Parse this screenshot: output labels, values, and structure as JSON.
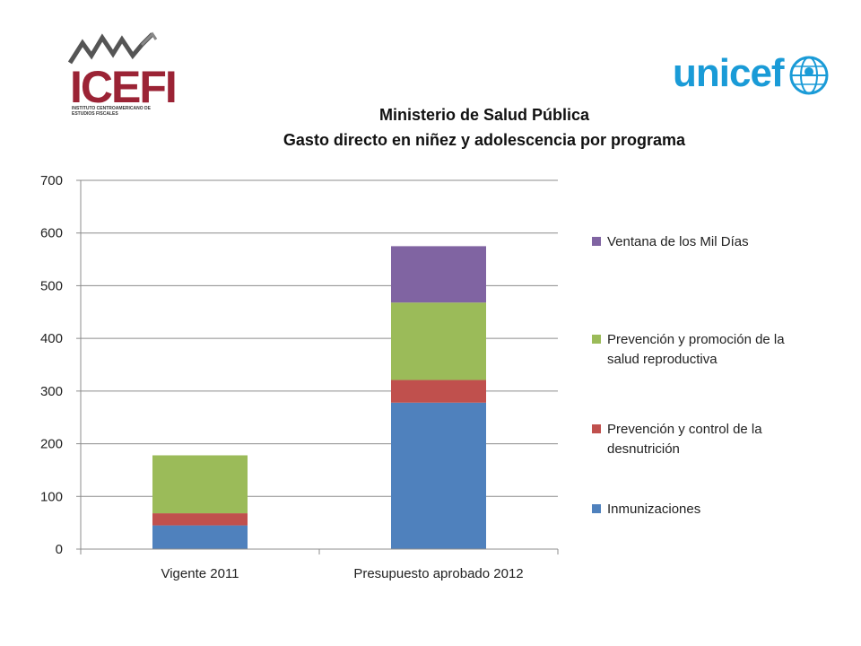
{
  "logos": {
    "icefi": {
      "brand": "ICEFI",
      "subtitle": "INSTITUTO CENTROAMERICANO DE ESTUDIOS FISCALES",
      "colors": {
        "brand": "#9b2335",
        "mark": "#555555"
      }
    },
    "unicef": {
      "brand": "unicef",
      "color": "#1a9bd7"
    }
  },
  "chart_data": {
    "type": "bar",
    "stacked": true,
    "title": "Ministerio de Salud Pública",
    "subtitle": "Gasto directo en niñez y adolescencia por programa",
    "xlabel": "",
    "ylabel": "",
    "categories": [
      "Vigente 2011",
      "Presupuesto aprobado 2012"
    ],
    "ylim": [
      0,
      700
    ],
    "yticks": [
      "0",
      "100",
      "200",
      "300",
      "400",
      "500",
      "600",
      "700"
    ],
    "grid": true,
    "legend_position": "right",
    "series": [
      {
        "name": "Inmunizaciones",
        "values": [
          45,
          278
        ],
        "color": "#4f81bd"
      },
      {
        "name": "Prevención y control de la desnutrición",
        "values": [
          23,
          43
        ],
        "color": "#c0504d"
      },
      {
        "name": "Prevención y promoción de la salud reproductiva",
        "values": [
          110,
          147
        ],
        "color": "#9bbb59"
      },
      {
        "name": "Ventana de los Mil Días",
        "values": [
          0,
          107
        ],
        "color": "#8064a2"
      }
    ]
  }
}
